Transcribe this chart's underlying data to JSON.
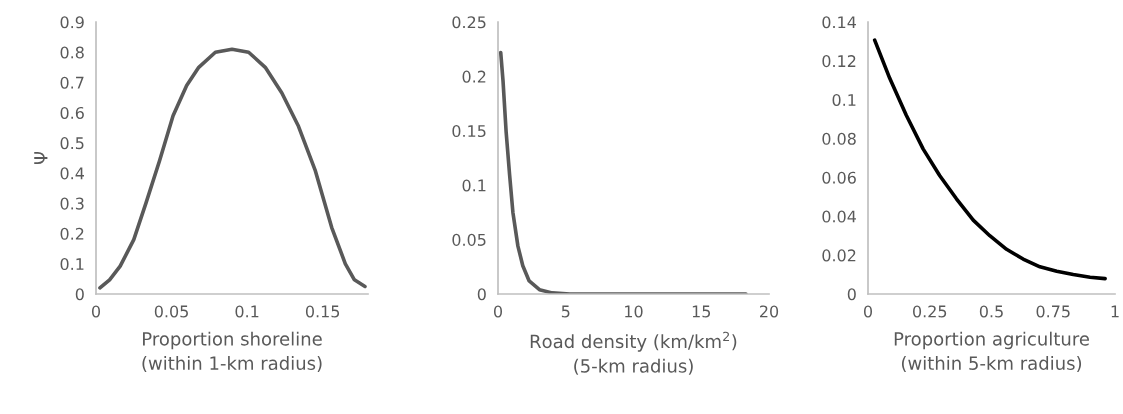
{
  "chart_data": [
    {
      "type": "line",
      "xlabel": "Proportion shoreline\n(within 1-km radius)",
      "ylabel": "Ψ",
      "xlim": [
        0,
        0.18
      ],
      "xticks": [
        0,
        0.05,
        0.1,
        0.15
      ],
      "ylim": [
        0,
        0.9
      ],
      "yticks": [
        0,
        0.1,
        0.2,
        0.3,
        0.4,
        0.5,
        0.6,
        0.7,
        0.8,
        0.9
      ],
      "grid": false,
      "marker": "none",
      "line_style": "solid",
      "series": [
        {
          "color": "#595959",
          "x": [
            0.0026,
            0.009,
            0.016,
            0.025,
            0.033,
            0.042,
            0.051,
            0.06,
            0.068,
            0.079,
            0.09,
            0.101,
            0.112,
            0.123,
            0.134,
            0.145,
            0.156,
            0.165,
            0.171,
            0.178
          ],
          "values": [
            0.02,
            0.047,
            0.092,
            0.18,
            0.3,
            0.44,
            0.59,
            0.69,
            0.75,
            0.8,
            0.81,
            0.8,
            0.75,
            0.665,
            0.555,
            0.41,
            0.22,
            0.1,
            0.047,
            0.025
          ]
        }
      ]
    },
    {
      "type": "line",
      "xlabel": "Road density (km/km$^{2}$)\n(5-km radius)",
      "xlim": [
        0,
        20
      ],
      "xticks": [
        0,
        5,
        10,
        15,
        20
      ],
      "ylim": [
        0,
        0.25
      ],
      "yticks": [
        0,
        0.05,
        0.1,
        0.15,
        0.2,
        0.25
      ],
      "grid": false,
      "marker": "none",
      "line_style": "solid",
      "series": [
        {
          "color": "#595959",
          "x": [
            0.2,
            0.37,
            0.6,
            0.86,
            1.1,
            1.47,
            1.83,
            2.3,
            3.06,
            4.0,
            5.3,
            18.3
          ],
          "values": [
            0.222,
            0.196,
            0.149,
            0.109,
            0.075,
            0.044,
            0.026,
            0.012,
            0.004,
            0.001,
            0,
            0
          ]
        }
      ]
    },
    {
      "type": "line",
      "xlabel": "Proportion agriculture\n(within 5-km radius)",
      "xlim": [
        0,
        1
      ],
      "xticks": [
        0,
        0.25,
        0.5,
        0.75,
        1
      ],
      "ylim": [
        0,
        0.14
      ],
      "yticks": [
        0,
        0.02,
        0.04,
        0.06,
        0.08,
        0.1,
        0.12,
        0.14
      ],
      "grid": false,
      "marker": "none",
      "line_style": "solid",
      "series": [
        {
          "color": "#000000",
          "x": [
            0.027,
            0.088,
            0.155,
            0.223,
            0.29,
            0.358,
            0.426,
            0.493,
            0.561,
            0.628,
            0.696,
            0.764,
            0.831,
            0.899,
            0.96
          ],
          "values": [
            0.1307,
            0.111,
            0.092,
            0.0747,
            0.061,
            0.049,
            0.038,
            0.03,
            0.023,
            0.018,
            0.014,
            0.0117,
            0.01,
            0.0086,
            0.0079
          ]
        }
      ]
    }
  ]
}
